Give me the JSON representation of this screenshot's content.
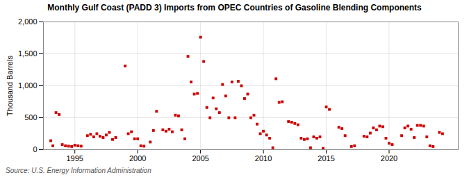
{
  "chart_data": {
    "type": "scatter",
    "title": "Monthly Gulf Coast (PADD 3) Imports from OPEC Countries of Gasoline Blending Components",
    "ylabel": "Thousand Barrels",
    "source": "Source: U.S. Energy Information Administration",
    "color": "#cc0000",
    "marker": "square",
    "grid": true,
    "xlim": [
      1992.5,
      2025.5
    ],
    "xticks": [
      1995,
      2000,
      2005,
      2010,
      2015,
      2020
    ],
    "ylim": [
      0,
      2000
    ],
    "yticks": [
      0,
      500,
      {
        "value": 1000,
        "label": "1,000"
      },
      {
        "value": 1500,
        "label": "1,500"
      },
      {
        "value": 2000,
        "label": "2,000"
      }
    ],
    "x": [
      1993.08,
      1993.25,
      1993.5,
      1993.75,
      1994.0,
      1994.25,
      1994.5,
      1994.75,
      1995.0,
      1995.25,
      1995.5,
      1996.0,
      1996.25,
      1996.5,
      1996.75,
      1997.0,
      1997.25,
      1997.5,
      1997.75,
      1998.0,
      1998.25,
      1999.0,
      1999.25,
      1999.5,
      1999.75,
      2000.0,
      2000.25,
      2000.5,
      2001.0,
      2001.25,
      2001.5,
      2002.0,
      2002.25,
      2002.5,
      2002.75,
      2003.0,
      2003.25,
      2003.5,
      2003.75,
      2004.0,
      2004.25,
      2004.5,
      2004.75,
      2005.0,
      2005.25,
      2005.5,
      2005.75,
      2006.0,
      2006.25,
      2006.5,
      2006.75,
      2007.0,
      2007.25,
      2007.5,
      2007.75,
      2008.0,
      2008.25,
      2008.5,
      2008.75,
      2009.0,
      2009.25,
      2009.5,
      2009.75,
      2010.0,
      2010.25,
      2010.5,
      2010.75,
      2011.0,
      2011.25,
      2011.5,
      2012.0,
      2012.25,
      2012.5,
      2012.75,
      2013.0,
      2013.25,
      2013.5,
      2013.75,
      2014.0,
      2014.25,
      2014.5,
      2014.75,
      2015.0,
      2015.25,
      2016.0,
      2016.25,
      2016.5,
      2017.0,
      2017.25,
      2018.0,
      2018.25,
      2018.5,
      2018.75,
      2019.0,
      2019.25,
      2019.5,
      2019.75,
      2020.0,
      2020.25,
      2021.0,
      2021.25,
      2021.5,
      2021.75,
      2022.0,
      2022.25,
      2022.5,
      2022.75,
      2023.0,
      2023.25,
      2023.5,
      2024.0,
      2024.25
    ],
    "values": [
      140,
      60,
      580,
      550,
      80,
      60,
      55,
      50,
      70,
      60,
      55,
      220,
      240,
      200,
      250,
      210,
      190,
      230,
      270,
      160,
      190,
      1310,
      250,
      280,
      170,
      170,
      60,
      55,
      120,
      300,
      600,
      310,
      290,
      320,
      280,
      540,
      530,
      310,
      170,
      1460,
      1060,
      870,
      880,
      1760,
      1380,
      660,
      500,
      810,
      640,
      580,
      1020,
      840,
      500,
      1060,
      500,
      1070,
      1000,
      800,
      870,
      500,
      540,
      400,
      250,
      290,
      230,
      180,
      30,
      1110,
      740,
      750,
      440,
      430,
      410,
      390,
      180,
      160,
      170,
      30,
      200,
      180,
      200,
      20,
      670,
      630,
      350,
      330,
      220,
      50,
      60,
      210,
      200,
      260,
      340,
      310,
      370,
      360,
      180,
      100,
      80,
      220,
      340,
      370,
      320,
      190,
      380,
      380,
      370,
      200,
      60,
      50,
      270,
      250
    ]
  }
}
